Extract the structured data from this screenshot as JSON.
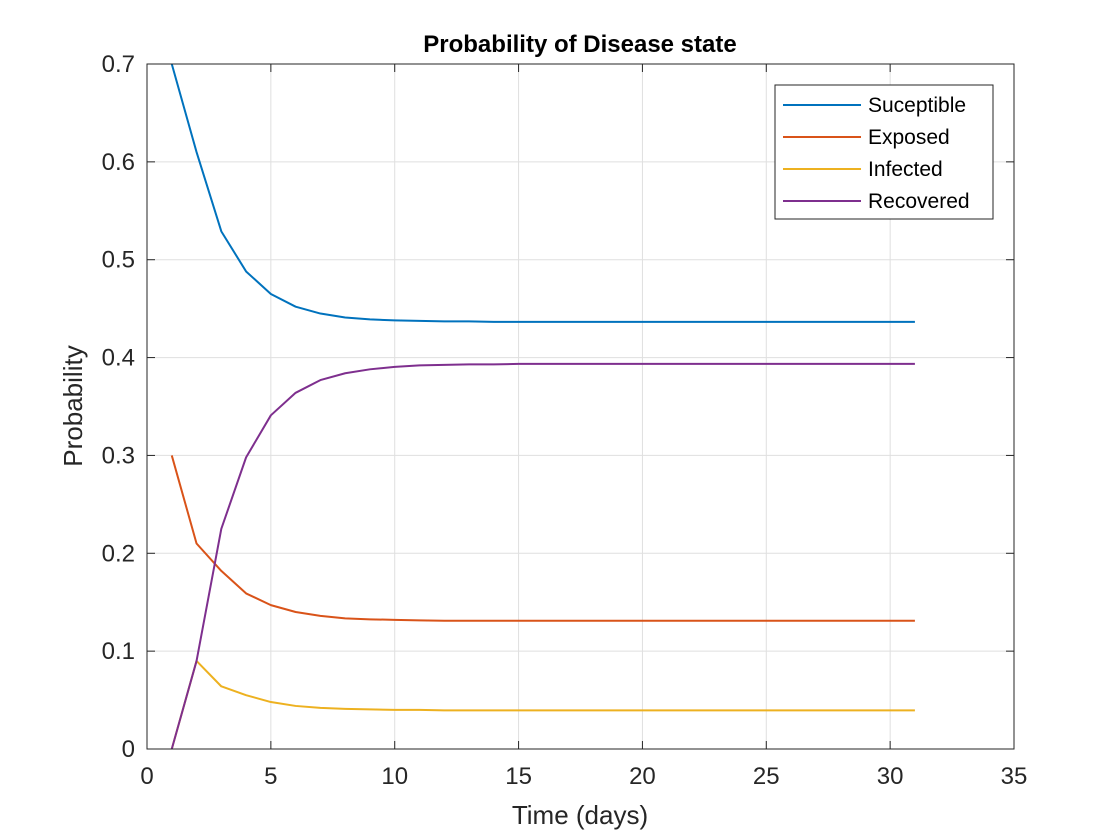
{
  "chart_data": {
    "type": "line",
    "title": "Probability of Disease state",
    "xlabel": "Time (days)",
    "ylabel": "Probability",
    "xlim": [
      0,
      35
    ],
    "ylim": [
      0,
      0.7
    ],
    "xticks": [
      "0",
      "5",
      "10",
      "15",
      "20",
      "25",
      "30",
      "35"
    ],
    "yticks": [
      "0",
      "0.1",
      "0.2",
      "0.3",
      "0.4",
      "0.5",
      "0.6",
      "0.7"
    ],
    "grid": true,
    "legend_position": "top-right",
    "x": [
      1,
      2,
      3,
      4,
      5,
      6,
      7,
      8,
      9,
      10,
      11,
      12,
      13,
      14,
      15,
      16,
      17,
      18,
      19,
      20,
      21,
      22,
      23,
      24,
      25,
      26,
      27,
      28,
      29,
      30,
      31
    ],
    "series": [
      {
        "name": "Suceptible",
        "color": "#0072BD",
        "values": [
          0.7,
          0.61,
          0.529,
          0.488,
          0.465,
          0.452,
          0.445,
          0.441,
          0.439,
          0.438,
          0.4375,
          0.437,
          0.437,
          0.4365,
          0.4365,
          0.4365,
          0.4365,
          0.4365,
          0.4365,
          0.4365,
          0.4365,
          0.4365,
          0.4365,
          0.4365,
          0.4365,
          0.4365,
          0.4365,
          0.4365,
          0.4365,
          0.4365,
          0.4365
        ]
      },
      {
        "name": "Exposed",
        "color": "#D95319",
        "values": [
          0.3,
          0.21,
          0.182,
          0.159,
          0.147,
          0.14,
          0.136,
          0.1335,
          0.1325,
          0.132,
          0.1315,
          0.131,
          0.131,
          0.131,
          0.131,
          0.131,
          0.131,
          0.131,
          0.131,
          0.131,
          0.131,
          0.131,
          0.131,
          0.131,
          0.131,
          0.131,
          0.131,
          0.131,
          0.131,
          0.131,
          0.131
        ]
      },
      {
        "name": "Infected",
        "color": "#EDB120",
        "values": [
          0.0,
          0.09,
          0.064,
          0.055,
          0.048,
          0.044,
          0.042,
          0.041,
          0.0405,
          0.04,
          0.04,
          0.0395,
          0.0395,
          0.0395,
          0.0395,
          0.0395,
          0.0395,
          0.0395,
          0.0395,
          0.0395,
          0.0395,
          0.0395,
          0.0395,
          0.0395,
          0.0395,
          0.0395,
          0.0395,
          0.0395,
          0.0395,
          0.0395,
          0.0395
        ]
      },
      {
        "name": "Recovered",
        "color": "#7E2F8E",
        "values": [
          0.0,
          0.09,
          0.225,
          0.298,
          0.341,
          0.364,
          0.377,
          0.384,
          0.388,
          0.3905,
          0.392,
          0.3925,
          0.393,
          0.393,
          0.3935,
          0.3935,
          0.3935,
          0.3935,
          0.3935,
          0.3935,
          0.3935,
          0.3935,
          0.3935,
          0.3935,
          0.3935,
          0.3935,
          0.3935,
          0.3935,
          0.3935,
          0.3935,
          0.3935
        ]
      }
    ]
  }
}
